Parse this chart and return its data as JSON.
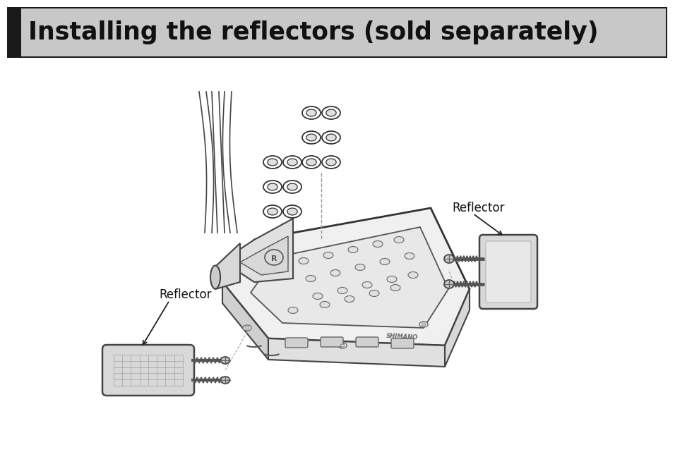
{
  "title": "Installing the reflectors (sold separately)",
  "title_bg_color": "#c8c8c8",
  "title_border_left_color": "#1a1a1a",
  "title_text_color": "#111111",
  "bg_color": "#ffffff",
  "label_left": "Reflector",
  "label_right": "Reflector",
  "fig_width": 9.56,
  "fig_height": 6.41,
  "dpi": 100
}
